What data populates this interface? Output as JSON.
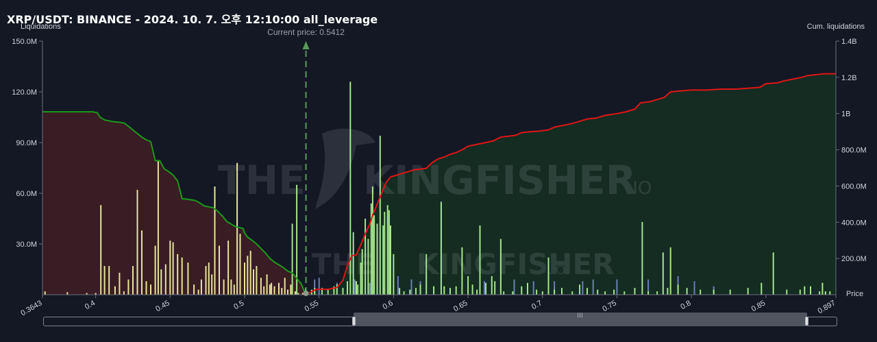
{
  "header": {
    "title": "XRP/USDT: BINANCE - 2024. 10. 7. 오후 12:10:00 all_leverage"
  },
  "chart_data": {
    "type": "bar",
    "title": "XRP/USDT: BINANCE - 2024. 10. 7. 오후 12:10:00 all_leverage",
    "ylabel": "Liquidations",
    "y2label": "Cum. liquidations",
    "xlabel": "Price",
    "current_price_label": "Current price: 0.5412",
    "current_price": 0.5412,
    "xlim": [
      0.3643,
      0.897
    ],
    "ylim": [
      0,
      150
    ],
    "y2lim": [
      0,
      1400
    ],
    "x_ticks": [
      "0.3643",
      "0.4",
      "0.45",
      "0.5",
      "0.55",
      "0.6",
      "0.65",
      "0.7",
      "0.75",
      "0.8",
      "0.85",
      "0.897"
    ],
    "x_tick_values": [
      0.3643,
      0.4,
      0.45,
      0.5,
      0.55,
      0.6,
      0.65,
      0.7,
      0.75,
      0.8,
      0.85,
      0.897
    ],
    "y_ticks": [
      "150.0M",
      "120.0M",
      "90.0M",
      "60.0M",
      "30.0M"
    ],
    "y_tick_values": [
      150,
      120,
      90,
      60,
      30
    ],
    "y2_ticks": [
      "1.4B",
      "1.2B",
      "1B",
      "800.0M",
      "600.0M",
      "400.0M",
      "200.0M"
    ],
    "y2_tick_values": [
      1400,
      1200,
      1000,
      800,
      600,
      400,
      200
    ],
    "colors": {
      "long_bar": "#e6e69a",
      "short_bar": "#a6e68c",
      "small_bar": "#6b7fb8",
      "long_cum_line": "#1a9a1a",
      "short_cum_line": "#e01515",
      "long_fill": "#3a1c24",
      "short_fill": "#142c22",
      "current_price_line": "#5a9a5a"
    },
    "long_bars": [
      [
        0.366,
        2
      ],
      [
        0.381,
        1.5
      ],
      [
        0.394,
        1
      ],
      [
        0.4,
        1
      ],
      [
        0.4035,
        53
      ],
      [
        0.406,
        17
      ],
      [
        0.409,
        17
      ],
      [
        0.413,
        5
      ],
      [
        0.416,
        13
      ],
      [
        0.419,
        2
      ],
      [
        0.422,
        9
      ],
      [
        0.425,
        17
      ],
      [
        0.428,
        62
      ],
      [
        0.431,
        38
      ],
      [
        0.434,
        8
      ],
      [
        0.437,
        6
      ],
      [
        0.44,
        29
      ],
      [
        0.442,
        79
      ],
      [
        0.444,
        15
      ],
      [
        0.447,
        18
      ],
      [
        0.45,
        32
      ],
      [
        0.452,
        31
      ],
      [
        0.455,
        24
      ],
      [
        0.458,
        22
      ],
      [
        0.462,
        19
      ],
      [
        0.466,
        6
      ],
      [
        0.469,
        3
      ],
      [
        0.471,
        9
      ],
      [
        0.474,
        17
      ],
      [
        0.476,
        19
      ],
      [
        0.478,
        12
      ],
      [
        0.48,
        64
      ],
      [
        0.483,
        29
      ],
      [
        0.486,
        9
      ],
      [
        0.489,
        32
      ],
      [
        0.491,
        9
      ],
      [
        0.493,
        6
      ],
      [
        0.495,
        78
      ],
      [
        0.497,
        36
      ],
      [
        0.5,
        19
      ],
      [
        0.502,
        23
      ],
      [
        0.504,
        26
      ],
      [
        0.506,
        15
      ],
      [
        0.508,
        17
      ],
      [
        0.511,
        10
      ],
      [
        0.513,
        5
      ],
      [
        0.515,
        12
      ],
      [
        0.517,
        6
      ],
      [
        0.518,
        7
      ],
      [
        0.52,
        5
      ],
      [
        0.523,
        7
      ],
      [
        0.525,
        4
      ],
      [
        0.527,
        10
      ],
      [
        0.529,
        3
      ],
      [
        0.531,
        6
      ],
      [
        0.534,
        2
      ],
      [
        0.536,
        1
      ],
      [
        0.539,
        1
      ]
    ],
    "short_bars": [
      [
        0.532,
        42
      ],
      [
        0.535,
        65
      ],
      [
        0.541,
        4
      ],
      [
        0.545,
        3
      ],
      [
        0.547,
        4
      ],
      [
        0.552,
        4
      ],
      [
        0.556,
        3
      ],
      [
        0.56,
        5
      ],
      [
        0.562,
        6
      ],
      [
        0.566,
        4
      ],
      [
        0.569,
        8
      ],
      [
        0.571,
        126
      ],
      [
        0.573,
        37
      ],
      [
        0.575,
        8
      ],
      [
        0.576,
        6
      ],
      [
        0.578,
        19
      ],
      [
        0.579,
        27
      ],
      [
        0.581,
        45
      ],
      [
        0.583,
        33
      ],
      [
        0.585,
        54
      ],
      [
        0.586,
        64
      ],
      [
        0.587,
        47
      ],
      [
        0.589,
        42
      ],
      [
        0.591,
        94
      ],
      [
        0.593,
        41
      ],
      [
        0.594,
        49
      ],
      [
        0.596,
        53
      ],
      [
        0.597,
        50
      ],
      [
        0.598,
        41
      ],
      [
        0.6,
        24
      ],
      [
        0.604,
        4
      ],
      [
        0.607,
        2
      ],
      [
        0.611,
        3
      ],
      [
        0.615,
        4
      ],
      [
        0.618,
        6
      ],
      [
        0.622,
        24
      ],
      [
        0.627,
        5
      ],
      [
        0.632,
        55
      ],
      [
        0.634,
        5
      ],
      [
        0.638,
        4
      ],
      [
        0.642,
        5
      ],
      [
        0.646,
        28
      ],
      [
        0.65,
        11
      ],
      [
        0.653,
        6
      ],
      [
        0.656,
        3
      ],
      [
        0.658,
        41
      ],
      [
        0.662,
        7
      ],
      [
        0.666,
        11
      ],
      [
        0.668,
        8
      ],
      [
        0.672,
        33
      ],
      [
        0.674,
        2
      ],
      [
        0.68,
        2
      ],
      [
        0.686,
        5
      ],
      [
        0.69,
        7
      ],
      [
        0.696,
        3
      ],
      [
        0.7,
        2
      ],
      [
        0.704,
        22
      ],
      [
        0.708,
        3
      ],
      [
        0.713,
        4
      ],
      [
        0.72,
        2
      ],
      [
        0.725,
        6
      ],
      [
        0.73,
        4
      ],
      [
        0.737,
        3
      ],
      [
        0.742,
        2
      ],
      [
        0.748,
        3
      ],
      [
        0.755,
        2
      ],
      [
        0.762,
        4
      ],
      [
        0.767,
        43
      ],
      [
        0.771,
        2
      ],
      [
        0.777,
        2
      ],
      [
        0.781,
        25
      ],
      [
        0.784,
        4
      ],
      [
        0.786,
        28
      ],
      [
        0.791,
        6
      ],
      [
        0.797,
        4
      ],
      [
        0.806,
        3
      ],
      [
        0.815,
        3
      ],
      [
        0.826,
        3
      ],
      [
        0.838,
        4
      ],
      [
        0.847,
        7
      ],
      [
        0.855,
        25
      ],
      [
        0.864,
        3
      ],
      [
        0.873,
        3
      ],
      [
        0.876,
        5
      ],
      [
        0.88,
        5
      ],
      [
        0.886,
        2
      ],
      [
        0.888,
        7
      ],
      [
        0.89,
        2
      ],
      [
        0.893,
        2
      ]
    ],
    "small_bars": [
      [
        0.547,
        9
      ],
      [
        0.55,
        10
      ],
      [
        0.562,
        7
      ],
      [
        0.574,
        9
      ],
      [
        0.584,
        7
      ],
      [
        0.603,
        11
      ],
      [
        0.612,
        9
      ],
      [
        0.618,
        8
      ],
      [
        0.661,
        8
      ],
      [
        0.681,
        9
      ],
      [
        0.694,
        8
      ],
      [
        0.708,
        8
      ],
      [
        0.727,
        8
      ],
      [
        0.734,
        9
      ],
      [
        0.75,
        9
      ],
      [
        0.771,
        9
      ],
      [
        0.791,
        11
      ],
      [
        0.802,
        8
      ],
      [
        0.815,
        5
      ]
    ],
    "long_cumulative": [
      [
        0.3643,
        1010
      ],
      [
        0.384,
        1010
      ],
      [
        0.398,
        1010
      ],
      [
        0.401,
        1005
      ],
      [
        0.403,
        980
      ],
      [
        0.406,
        965
      ],
      [
        0.409,
        960
      ],
      [
        0.412,
        955
      ],
      [
        0.416,
        952
      ],
      [
        0.419,
        948
      ],
      [
        0.422,
        930
      ],
      [
        0.425,
        910
      ],
      [
        0.428,
        890
      ],
      [
        0.431,
        870
      ],
      [
        0.434,
        855
      ],
      [
        0.437,
        845
      ],
      [
        0.44,
        740
      ],
      [
        0.443,
        740
      ],
      [
        0.446,
        695
      ],
      [
        0.449,
        680
      ],
      [
        0.452,
        660
      ],
      [
        0.455,
        628
      ],
      [
        0.458,
        530
      ],
      [
        0.461,
        528
      ],
      [
        0.464,
        524
      ],
      [
        0.467,
        520
      ],
      [
        0.47,
        506
      ],
      [
        0.473,
        490
      ],
      [
        0.476,
        485
      ],
      [
        0.479,
        480
      ],
      [
        0.482,
        460
      ],
      [
        0.485,
        435
      ],
      [
        0.488,
        405
      ],
      [
        0.49,
        395
      ],
      [
        0.492,
        385
      ],
      [
        0.494,
        375
      ],
      [
        0.496,
        372
      ],
      [
        0.499,
        365
      ],
      [
        0.5,
        340
      ],
      [
        0.502,
        318
      ],
      [
        0.505,
        300
      ],
      [
        0.508,
        280
      ],
      [
        0.511,
        255
      ],
      [
        0.514,
        230
      ],
      [
        0.517,
        200
      ],
      [
        0.52,
        180
      ],
      [
        0.523,
        165
      ],
      [
        0.526,
        150
      ],
      [
        0.529,
        130
      ],
      [
        0.532,
        120
      ],
      [
        0.535,
        90
      ],
      [
        0.538,
        60
      ],
      [
        0.54,
        20
      ],
      [
        0.5412,
        0
      ]
    ],
    "short_cumulative": [
      [
        0.5412,
        0
      ],
      [
        0.548,
        30
      ],
      [
        0.556,
        30
      ],
      [
        0.562,
        40
      ],
      [
        0.566,
        80
      ],
      [
        0.569,
        160
      ],
      [
        0.572,
        215
      ],
      [
        0.575,
        220
      ],
      [
        0.578,
        275
      ],
      [
        0.581,
        335
      ],
      [
        0.584,
        390
      ],
      [
        0.586,
        440
      ],
      [
        0.589,
        500
      ],
      [
        0.592,
        560
      ],
      [
        0.595,
        620
      ],
      [
        0.598,
        650
      ],
      [
        0.602,
        660
      ],
      [
        0.606,
        670
      ],
      [
        0.61,
        680
      ],
      [
        0.614,
        690
      ],
      [
        0.618,
        693
      ],
      [
        0.622,
        698
      ],
      [
        0.626,
        730
      ],
      [
        0.63,
        750
      ],
      [
        0.634,
        760
      ],
      [
        0.638,
        775
      ],
      [
        0.642,
        785
      ],
      [
        0.646,
        800
      ],
      [
        0.65,
        820
      ],
      [
        0.656,
        830
      ],
      [
        0.662,
        840
      ],
      [
        0.667,
        850
      ],
      [
        0.672,
        870
      ],
      [
        0.677,
        875
      ],
      [
        0.682,
        880
      ],
      [
        0.686,
        895
      ],
      [
        0.692,
        900
      ],
      [
        0.698,
        903
      ],
      [
        0.704,
        910
      ],
      [
        0.708,
        925
      ],
      [
        0.714,
        935
      ],
      [
        0.72,
        945
      ],
      [
        0.726,
        960
      ],
      [
        0.73,
        970
      ],
      [
        0.736,
        975
      ],
      [
        0.742,
        990
      ],
      [
        0.75,
        1000
      ],
      [
        0.756,
        1010
      ],
      [
        0.762,
        1025
      ],
      [
        0.766,
        1060
      ],
      [
        0.772,
        1065
      ],
      [
        0.778,
        1080
      ],
      [
        0.782,
        1090
      ],
      [
        0.786,
        1120
      ],
      [
        0.792,
        1125
      ],
      [
        0.8,
        1130
      ],
      [
        0.81,
        1130
      ],
      [
        0.82,
        1135
      ],
      [
        0.83,
        1135
      ],
      [
        0.838,
        1140
      ],
      [
        0.846,
        1145
      ],
      [
        0.85,
        1165
      ],
      [
        0.858,
        1170
      ],
      [
        0.862,
        1180
      ],
      [
        0.868,
        1190
      ],
      [
        0.874,
        1200
      ],
      [
        0.878,
        1210
      ],
      [
        0.884,
        1215
      ],
      [
        0.889,
        1220
      ],
      [
        0.897,
        1220
      ]
    ]
  }
}
